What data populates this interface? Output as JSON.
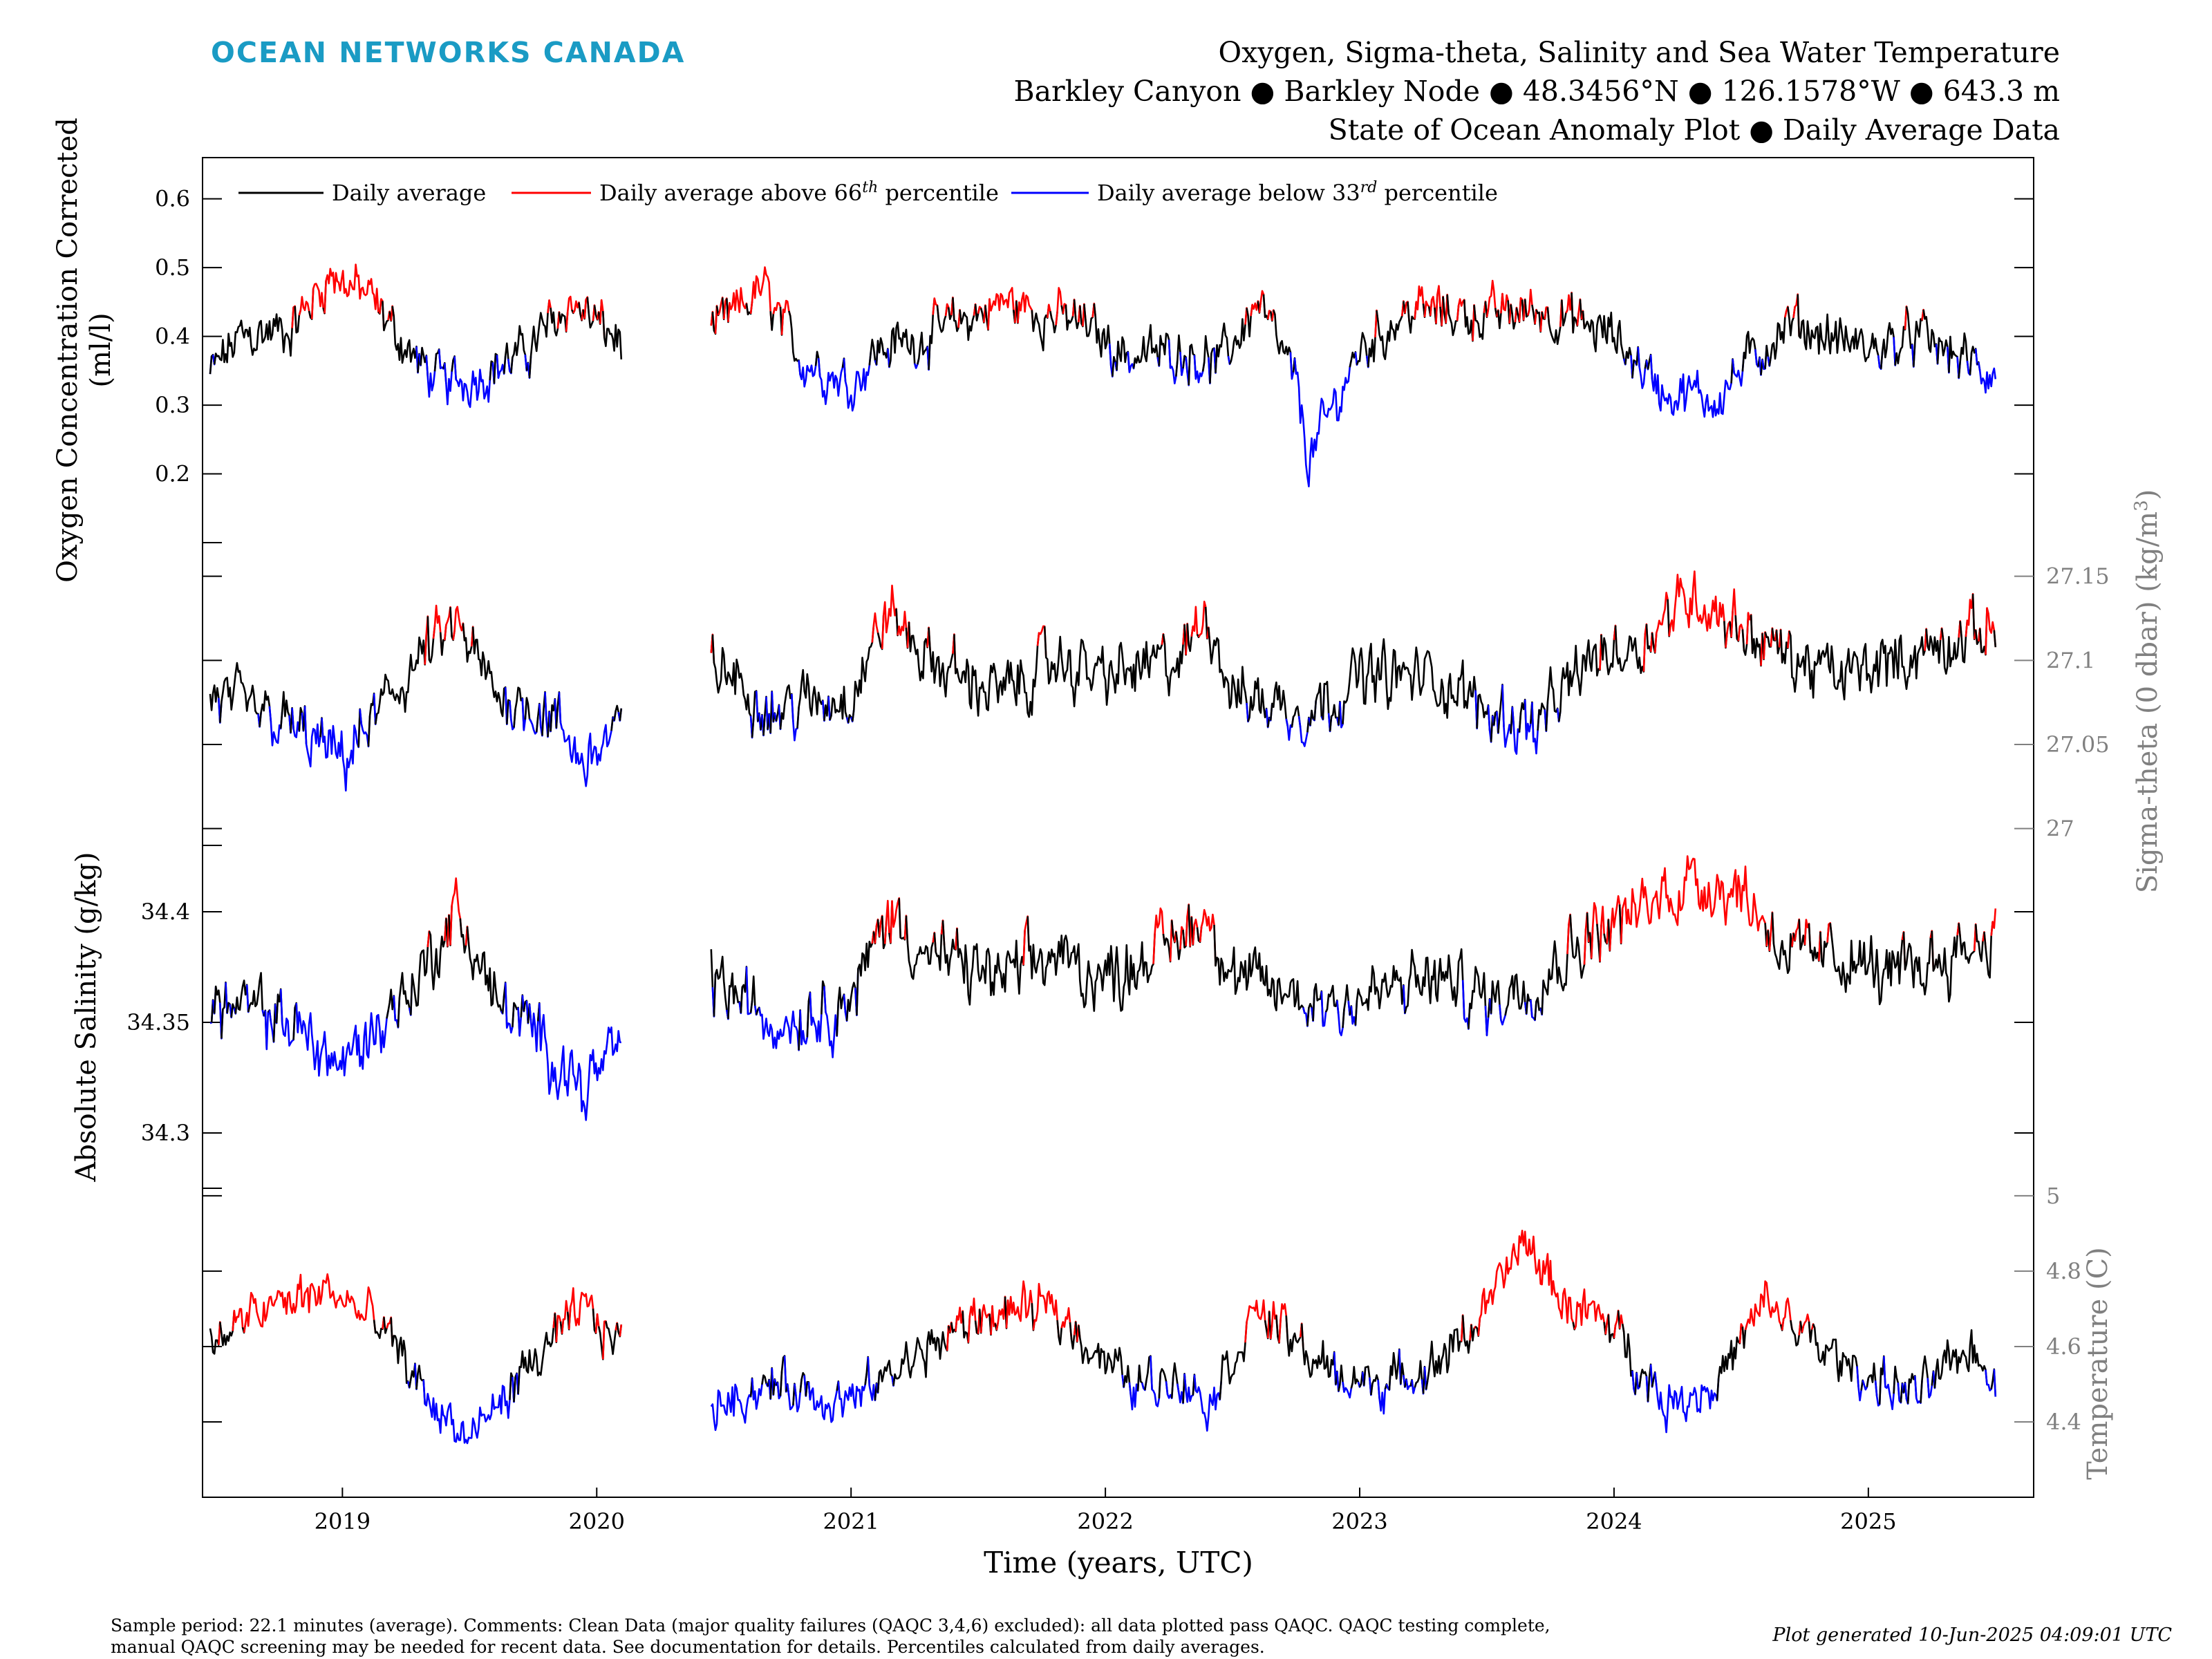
{
  "header": {
    "brand": "OCEAN NETWORKS CANADA",
    "brand_color": "#1a9bc4",
    "title_lines": [
      "Oxygen, Sigma-theta, Salinity and Sea Water Temperature",
      "Barkley Canyon ● Barkley Node ● 48.3456°N ● 126.1578°W ● 643.3 m",
      "State of Ocean Anomaly Plot ● Daily Average Data"
    ]
  },
  "legend": {
    "entries": [
      {
        "label": "Daily average",
        "color": "#000000"
      },
      {
        "label": "Daily average above 66th percentile",
        "color": "#ff0000"
      },
      {
        "label": "Daily average below 33rd percentile",
        "color": "#0000ff"
      }
    ]
  },
  "footer": {
    "note_line1": "Sample period: 22.1 minutes (average). Comments: Clean Data (major quality failures (QAQC 3,4,6) excluded): all data plotted pass QAQC. QAQC testing complete,",
    "note_line2": "manual QAQC screening may be needed for recent data. See documentation for details. Percentiles calculated from daily averages.",
    "generated": "Plot generated 10-Jun-2025 04:09:01 UTC"
  },
  "chart_data": {
    "type": "line",
    "xlabel": "Time (years, UTC)",
    "xlim": [
      2018.45,
      2025.65
    ],
    "x_ticks": [
      "2019",
      "2020",
      "2021",
      "2022",
      "2023",
      "2024",
      "2025"
    ],
    "gap": [
      2020.1,
      2020.45
    ],
    "colors": {
      "normal": "#000000",
      "above": "#ff0000",
      "below": "#0000ff",
      "axis_gray": "#808080"
    },
    "panels": [
      {
        "id": "oxygen",
        "ylabel": "Oxygen Concentration Corrected (ml/l)",
        "ylabel_lines": [
          "Oxygen Concentration Corrected",
          "(ml/l)"
        ],
        "side": "left",
        "ylim": [
          0.1,
          0.66
        ],
        "ticks": [
          "0.6",
          "0.5",
          "0.4",
          "0.3",
          "0.2"
        ],
        "tick_values": [
          0.6,
          0.5,
          0.4,
          0.3,
          0.2
        ],
        "p33": 0.36,
        "p66": 0.435,
        "anchors": [
          [
            2018.45,
            0.33
          ],
          [
            2018.6,
            0.4
          ],
          [
            2018.8,
            0.41
          ],
          [
            2018.95,
            0.49
          ],
          [
            2019.1,
            0.46
          ],
          [
            2019.3,
            0.36
          ],
          [
            2019.4,
            0.33
          ],
          [
            2019.5,
            0.34
          ],
          [
            2019.7,
            0.37
          ],
          [
            2019.9,
            0.45
          ],
          [
            2020.1,
            0.39
          ],
          [
            2020.45,
            0.4
          ],
          [
            2020.65,
            0.47
          ],
          [
            2020.8,
            0.37
          ],
          [
            2021.0,
            0.33
          ],
          [
            2021.1,
            0.38
          ],
          [
            2021.3,
            0.4
          ],
          [
            2021.6,
            0.45
          ],
          [
            2021.9,
            0.42
          ],
          [
            2022.1,
            0.37
          ],
          [
            2022.3,
            0.38
          ],
          [
            2022.45,
            0.36
          ],
          [
            2022.6,
            0.45
          ],
          [
            2022.75,
            0.33
          ],
          [
            2022.8,
            0.22
          ],
          [
            2022.9,
            0.3
          ],
          [
            2023.0,
            0.38
          ],
          [
            2023.2,
            0.44
          ],
          [
            2023.5,
            0.43
          ],
          [
            2023.7,
            0.44
          ],
          [
            2024.0,
            0.4
          ],
          [
            2024.2,
            0.32
          ],
          [
            2024.4,
            0.31
          ],
          [
            2024.55,
            0.37
          ],
          [
            2024.7,
            0.42
          ],
          [
            2025.0,
            0.38
          ],
          [
            2025.2,
            0.4
          ],
          [
            2025.4,
            0.36
          ],
          [
            2025.5,
            0.34
          ]
        ],
        "noise": 0.032
      },
      {
        "id": "sigma",
        "ylabel": "Sigma-theta (0 dbar) (kg/m3)",
        "ylabel_text": "Sigma-theta (0 dbar) (kg/m",
        "ylabel_sup": "3",
        "ylabel_tail": ")",
        "side": "right",
        "ylim": [
          26.99,
          27.17
        ],
        "ticks": [
          "27.15",
          "27.1",
          "27.05",
          "27"
        ],
        "tick_values": [
          27.15,
          27.1,
          27.05,
          27.0
        ],
        "p33": 27.065,
        "p66": 27.115,
        "anchors": [
          [
            2018.45,
            27.08
          ],
          [
            2018.8,
            27.06
          ],
          [
            2019.0,
            27.04
          ],
          [
            2019.3,
            27.1
          ],
          [
            2019.45,
            27.12
          ],
          [
            2019.6,
            27.08
          ],
          [
            2019.8,
            27.07
          ],
          [
            2019.95,
            27.04
          ],
          [
            2020.1,
            27.06
          ],
          [
            2020.45,
            27.1
          ],
          [
            2020.7,
            27.07
          ],
          [
            2021.0,
            27.08
          ],
          [
            2021.15,
            27.13
          ],
          [
            2021.3,
            27.1
          ],
          [
            2021.6,
            27.08
          ],
          [
            2021.8,
            27.1
          ],
          [
            2022.0,
            27.09
          ],
          [
            2022.3,
            27.1
          ],
          [
            2022.4,
            27.13
          ],
          [
            2022.5,
            27.08
          ],
          [
            2022.8,
            27.07
          ],
          [
            2023.0,
            27.09
          ],
          [
            2023.3,
            27.09
          ],
          [
            2023.5,
            27.07
          ],
          [
            2023.7,
            27.06
          ],
          [
            2023.9,
            27.1
          ],
          [
            2024.1,
            27.11
          ],
          [
            2024.3,
            27.14
          ],
          [
            2024.5,
            27.12
          ],
          [
            2024.7,
            27.1
          ],
          [
            2024.9,
            27.09
          ],
          [
            2025.1,
            27.1
          ],
          [
            2025.3,
            27.11
          ],
          [
            2025.5,
            27.12
          ]
        ],
        "noise": 0.016
      },
      {
        "id": "salinity",
        "ylabel": "Absolute Salinity (g/kg)",
        "side": "left",
        "ylim": [
          34.275,
          34.43
        ],
        "ticks": [
          "34.4",
          "34.35",
          "34.3"
        ],
        "tick_values": [
          34.4,
          34.35,
          34.3
        ],
        "p33": 34.355,
        "p66": 34.39,
        "anchors": [
          [
            2018.45,
            34.36
          ],
          [
            2018.8,
            34.35
          ],
          [
            2019.0,
            34.33
          ],
          [
            2019.3,
            34.37
          ],
          [
            2019.45,
            34.4
          ],
          [
            2019.6,
            34.36
          ],
          [
            2019.8,
            34.34
          ],
          [
            2019.95,
            34.32
          ],
          [
            2020.1,
            34.34
          ],
          [
            2020.45,
            34.37
          ],
          [
            2020.7,
            34.35
          ],
          [
            2021.0,
            34.36
          ],
          [
            2021.15,
            34.4
          ],
          [
            2021.3,
            34.38
          ],
          [
            2021.6,
            34.37
          ],
          [
            2021.8,
            34.38
          ],
          [
            2022.0,
            34.37
          ],
          [
            2022.3,
            34.39
          ],
          [
            2022.4,
            34.4
          ],
          [
            2022.5,
            34.37
          ],
          [
            2022.8,
            34.36
          ],
          [
            2023.0,
            34.36
          ],
          [
            2023.3,
            34.37
          ],
          [
            2023.5,
            34.36
          ],
          [
            2023.7,
            34.37
          ],
          [
            2023.9,
            34.39
          ],
          [
            2024.1,
            34.4
          ],
          [
            2024.3,
            34.415
          ],
          [
            2024.5,
            34.41
          ],
          [
            2024.7,
            34.38
          ],
          [
            2024.9,
            34.38
          ],
          [
            2025.1,
            34.37
          ],
          [
            2025.3,
            34.38
          ],
          [
            2025.5,
            34.39
          ]
        ],
        "noise": 0.013
      },
      {
        "id": "temperature",
        "ylabel": "Temperature (C)",
        "side": "right",
        "ylim": [
          4.2,
          5.02
        ],
        "ticks": [
          "5",
          "4.8",
          "4.6",
          "4.4"
        ],
        "tick_values": [
          5.0,
          4.8,
          4.6,
          4.4
        ],
        "p33": 4.5,
        "p66": 4.65,
        "anchors": [
          [
            2018.45,
            4.6
          ],
          [
            2018.7,
            4.7
          ],
          [
            2018.95,
            4.75
          ],
          [
            2019.15,
            4.65
          ],
          [
            2019.35,
            4.45
          ],
          [
            2019.5,
            4.35
          ],
          [
            2019.7,
            4.52
          ],
          [
            2019.95,
            4.7
          ],
          [
            2020.1,
            4.6
          ],
          [
            2020.45,
            4.45
          ],
          [
            2020.7,
            4.5
          ],
          [
            2021.0,
            4.45
          ],
          [
            2021.2,
            4.55
          ],
          [
            2021.5,
            4.68
          ],
          [
            2021.8,
            4.7
          ],
          [
            2022.1,
            4.5
          ],
          [
            2022.3,
            4.52
          ],
          [
            2022.4,
            4.45
          ],
          [
            2022.6,
            4.7
          ],
          [
            2022.9,
            4.52
          ],
          [
            2023.1,
            4.5
          ],
          [
            2023.3,
            4.55
          ],
          [
            2023.5,
            4.7
          ],
          [
            2023.65,
            4.88
          ],
          [
            2023.8,
            4.72
          ],
          [
            2024.0,
            4.65
          ],
          [
            2024.2,
            4.45
          ],
          [
            2024.4,
            4.5
          ],
          [
            2024.6,
            4.72
          ],
          [
            2024.8,
            4.6
          ],
          [
            2025.0,
            4.52
          ],
          [
            2025.2,
            4.47
          ],
          [
            2025.4,
            4.6
          ],
          [
            2025.5,
            4.52
          ]
        ],
        "noise": 0.055
      }
    ]
  }
}
